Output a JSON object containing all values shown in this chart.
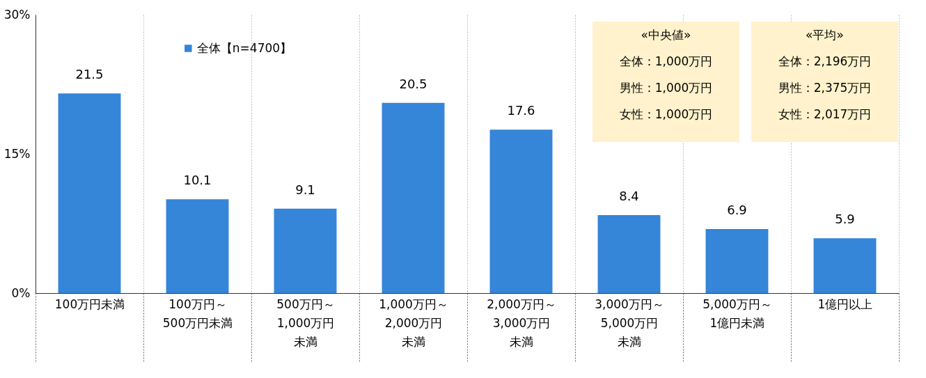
{
  "chart_data": {
    "type": "bar",
    "categories": [
      "100万円未満",
      "100万円～500万円未満",
      "500万円～1,000万円未満",
      "1,000万円～2,000万円未満",
      "2,000万円～3,000万円未満",
      "3,000万円～5,000万円未満",
      "5,000万円～1億円未満",
      "1億円以上"
    ],
    "series": [
      {
        "name": "全体【n=4700】",
        "color": "#3585d8",
        "values": [
          21.5,
          10.1,
          9.1,
          20.5,
          17.6,
          8.4,
          6.9,
          5.9
        ]
      }
    ],
    "ylim": [
      0,
      30
    ],
    "yticks": [
      {
        "value": 0,
        "label": "0%"
      },
      {
        "value": 15,
        "label": "15%"
      },
      {
        "value": 30,
        "label": "30%"
      }
    ],
    "annotations": [
      "«中央値»",
      "全体：1,000万円",
      "男性：1,000万円",
      "女性：1,000万円",
      "«平均»",
      "全体：2,196万円",
      "男性：2,375万円",
      "女性：2,017万円"
    ],
    "data_labels": true,
    "grid": "x",
    "legend": "top left"
  }
}
